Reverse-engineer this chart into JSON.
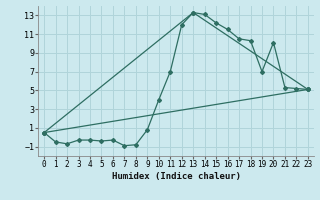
{
  "xlabel": "Humidex (Indice chaleur)",
  "ylabel": "",
  "bg_color": "#cce9ee",
  "grid_color": "#b0d4da",
  "line_color": "#2e6e62",
  "xlim": [
    -0.5,
    23.5
  ],
  "ylim": [
    -2.0,
    14.0
  ],
  "yticks": [
    -1,
    1,
    3,
    5,
    7,
    9,
    11,
    13
  ],
  "xticks": [
    0,
    1,
    2,
    3,
    4,
    5,
    6,
    7,
    8,
    9,
    10,
    11,
    12,
    13,
    14,
    15,
    16,
    17,
    18,
    19,
    20,
    21,
    22,
    23
  ],
  "line1_x": [
    0,
    1,
    2,
    3,
    4,
    5,
    6,
    7,
    8,
    9,
    10,
    11,
    12,
    13,
    14,
    15,
    16,
    17,
    18,
    19,
    20,
    21,
    22,
    23
  ],
  "line1_y": [
    0.5,
    -0.5,
    -0.7,
    -0.3,
    -0.3,
    -0.4,
    -0.3,
    -0.9,
    -0.8,
    0.8,
    4.0,
    7.0,
    12.0,
    13.3,
    13.1,
    12.2,
    11.5,
    10.5,
    10.3,
    7.0,
    10.1,
    5.3,
    5.2,
    5.1
  ],
  "line2_x": [
    0,
    13,
    23
  ],
  "line2_y": [
    0.5,
    13.3,
    5.1
  ],
  "line3_x": [
    0,
    23
  ],
  "line3_y": [
    0.5,
    5.1
  ]
}
